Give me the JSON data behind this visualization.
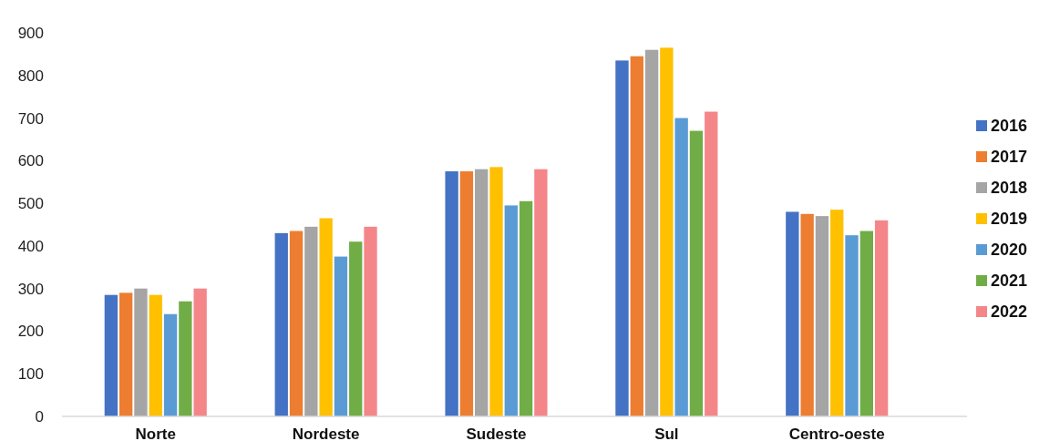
{
  "chart_data": {
    "type": "bar",
    "categories": [
      "Norte",
      "Nordeste",
      "Sudeste",
      "Sul",
      "Centro-oeste"
    ],
    "series": [
      {
        "name": "2016",
        "color": "#4472c4",
        "values": [
          285,
          430,
          575,
          835,
          480
        ]
      },
      {
        "name": "2017",
        "color": "#ed7d31",
        "values": [
          290,
          435,
          575,
          845,
          475
        ]
      },
      {
        "name": "2018",
        "color": "#a5a5a5",
        "values": [
          300,
          445,
          580,
          860,
          470
        ]
      },
      {
        "name": "2019",
        "color": "#ffc000",
        "values": [
          285,
          465,
          585,
          865,
          485
        ]
      },
      {
        "name": "2020",
        "color": "#5b9bd5",
        "values": [
          240,
          375,
          495,
          700,
          425
        ]
      },
      {
        "name": "2021",
        "color": "#70ad47",
        "values": [
          270,
          410,
          505,
          670,
          435
        ]
      },
      {
        "name": "2022",
        "color": "#f4868a",
        "values": [
          300,
          445,
          580,
          715,
          460
        ]
      }
    ],
    "ylim": [
      0,
      900
    ],
    "yticks": [
      0,
      100,
      200,
      300,
      400,
      500,
      600,
      700,
      800,
      900
    ],
    "grid": false,
    "legend": "right"
  }
}
